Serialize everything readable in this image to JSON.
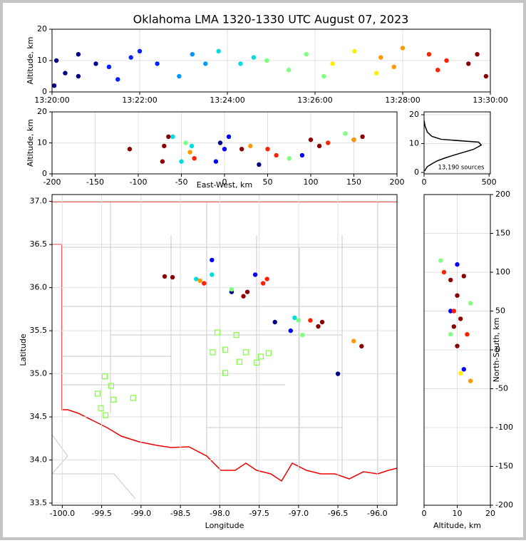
{
  "chart_data": [
    {
      "type": "scatter",
      "title": "Oklahoma LMA 1320-1330 UTC August 07, 2023",
      "ylabel": "Altitude, km",
      "xlim": [
        0,
        10
      ],
      "ylim": [
        0,
        20
      ],
      "xticks": [
        {
          "value": 0,
          "label": "13:20:00"
        },
        {
          "value": 2,
          "label": "13:22:00"
        },
        {
          "value": 4,
          "label": "13:24:00"
        },
        {
          "value": 6,
          "label": "13:26:00"
        },
        {
          "value": 8,
          "label": "13:28:00"
        },
        {
          "value": 10,
          "label": "13:30:00"
        }
      ],
      "yticks": [
        0,
        10,
        20
      ],
      "grid": true,
      "series": [
        {
          "color": "#00008b",
          "x": [
            0.05,
            0.1,
            0.3,
            0.6,
            0.6,
            1.0
          ],
          "y": [
            2,
            10,
            6,
            12,
            5,
            9
          ]
        },
        {
          "color": "#0022ff",
          "x": [
            1.3,
            1.5,
            1.8,
            2.0,
            2.4
          ],
          "y": [
            8,
            4,
            11,
            13,
            9
          ]
        },
        {
          "color": "#0099ff",
          "x": [
            2.9,
            3.2,
            3.5
          ],
          "y": [
            5,
            12,
            9
          ]
        },
        {
          "color": "#00dddd",
          "x": [
            3.8,
            4.3,
            4.6
          ],
          "y": [
            13,
            9,
            11
          ]
        },
        {
          "color": "#80ff80",
          "x": [
            4.9,
            5.4,
            5.8,
            6.2
          ],
          "y": [
            10,
            7,
            12,
            5
          ]
        },
        {
          "color": "#ffee00",
          "x": [
            6.4,
            6.9,
            7.4
          ],
          "y": [
            9,
            13,
            6
          ]
        },
        {
          "color": "#ff9900",
          "x": [
            7.5,
            7.8,
            8.0
          ],
          "y": [
            11,
            8,
            14
          ]
        },
        {
          "color": "#ff2200",
          "x": [
            8.6,
            8.8,
            9.0
          ],
          "y": [
            12,
            7,
            10
          ]
        },
        {
          "color": "#8b0000",
          "x": [
            9.5,
            9.7,
            9.9
          ],
          "y": [
            9,
            12,
            5
          ]
        }
      ]
    },
    {
      "type": "scatter",
      "xlabel": "East-West, km",
      "ylabel": "Altitude, km",
      "xlim": [
        -200,
        200
      ],
      "ylim": [
        0,
        20
      ],
      "xticks": [
        -200,
        -150,
        -100,
        -50,
        0,
        50,
        100,
        150,
        200
      ],
      "yticks": [
        0,
        10,
        20
      ],
      "grid": true,
      "series": [
        {
          "color": "#00008b",
          "x": [
            -5,
            40,
            150
          ],
          "y": [
            10,
            3,
            11
          ]
        },
        {
          "color": "#0000ff",
          "x": [
            0,
            5,
            -10,
            90
          ],
          "y": [
            8,
            12,
            4,
            6
          ]
        },
        {
          "color": "#00dddd",
          "x": [
            -38,
            -50,
            -60
          ],
          "y": [
            9,
            4,
            12
          ]
        },
        {
          "color": "#80ff80",
          "x": [
            -45,
            75,
            140
          ],
          "y": [
            10,
            5,
            13
          ]
        },
        {
          "color": "#ff9900",
          "x": [
            -40,
            30,
            150
          ],
          "y": [
            7,
            9,
            11
          ]
        },
        {
          "color": "#ff2200",
          "x": [
            -35,
            50,
            60,
            120
          ],
          "y": [
            5,
            8,
            6,
            10
          ]
        },
        {
          "color": "#8b0000",
          "x": [
            -110,
            -70,
            -65,
            -72,
            20,
            100,
            110,
            160
          ],
          "y": [
            8,
            9,
            12,
            4,
            8,
            11,
            9,
            12
          ]
        }
      ]
    },
    {
      "type": "line",
      "xlim": [
        0,
        510
      ],
      "ylim": [
        -0.5,
        21
      ],
      "xticks": [
        0,
        500
      ],
      "yticks": [
        0,
        10,
        20
      ],
      "grid": true,
      "annotation": "13,190 sources",
      "series": [
        {
          "color": "#000000",
          "x": [
            5,
            10,
            25,
            60,
            100,
            160,
            230,
            380,
            440,
            420,
            130,
            60,
            25,
            8,
            0
          ],
          "y": [
            0.5,
            1,
            2,
            3,
            4,
            5,
            6,
            8,
            9.5,
            10.5,
            11.5,
            12.5,
            14,
            16,
            18
          ]
        }
      ]
    },
    {
      "type": "scatter",
      "xlabel": "Longitude",
      "ylabel": "Latitude",
      "xlim": [
        -100.13,
        -95.75
      ],
      "ylim": [
        33.475,
        37.08
      ],
      "xticks": [
        {
          "value": -100,
          "label": "-100.0"
        },
        -99.5,
        {
          "value": -99,
          "label": "-99.0"
        },
        -98.5,
        {
          "value": -98,
          "label": "-98.0"
        },
        -97.5,
        {
          "value": -97,
          "label": "-97.0"
        },
        -96.5,
        {
          "value": -96,
          "label": "-96.0"
        }
      ],
      "yticks": [
        33.5,
        {
          "value": 34,
          "label": "34.0"
        },
        34.5,
        {
          "value": 35,
          "label": "35.0"
        },
        35.5,
        {
          "value": 36,
          "label": "36.0"
        },
        36.5,
        {
          "value": 37,
          "label": "37.0"
        }
      ],
      "grid": true,
      "series": [
        {
          "color": "#00008b",
          "x": [
            -97.85,
            -96.5,
            -97.3
          ],
          "y": [
            35.95,
            35.0,
            35.6
          ]
        },
        {
          "color": "#0000ff",
          "x": [
            -98.1,
            -97.55,
            -97.1
          ],
          "y": [
            36.32,
            36.15,
            35.5
          ]
        },
        {
          "color": "#00dddd",
          "x": [
            -98.3,
            -98.1,
            -97.05
          ],
          "y": [
            36.1,
            36.15,
            35.65
          ]
        },
        {
          "color": "#80ff80",
          "x": [
            -97.85,
            -97.0,
            -96.95
          ],
          "y": [
            35.98,
            35.62,
            35.45
          ]
        },
        {
          "color": "#ff9900",
          "x": [
            -98.25,
            -96.3
          ],
          "y": [
            36.08,
            35.38
          ]
        },
        {
          "color": "#ff2200",
          "x": [
            -98.2,
            -97.45,
            -97.4,
            -96.85
          ],
          "y": [
            36.05,
            36.05,
            36.1,
            35.62
          ]
        },
        {
          "color": "#8b0000",
          "x": [
            -98.7,
            -98.6,
            -97.7,
            -97.65,
            -96.75,
            -96.7,
            -96.2
          ],
          "y": [
            36.13,
            36.12,
            35.9,
            35.95,
            35.55,
            35.6,
            35.32
          ]
        },
        {
          "color": "#80ff40",
          "marker": "square",
          "x": [
            -98.03,
            -97.79,
            -98.09,
            -97.93,
            -97.67,
            -97.38,
            -97.93,
            -97.75,
            -97.53,
            -97.48,
            -99.46,
            -99.38,
            -99.55,
            -99.35,
            -99.1,
            -99.51,
            -99.45
          ],
          "y": [
            35.48,
            35.45,
            35.25,
            35.28,
            35.25,
            35.24,
            35.01,
            35.14,
            35.13,
            35.2,
            34.97,
            34.86,
            34.77,
            34.7,
            34.72,
            34.6,
            34.52
          ]
        }
      ]
    },
    {
      "type": "scatter",
      "xlabel": "Altitude, km",
      "ylabel": "North-South, km",
      "y_axis_side": "right",
      "xlim": [
        0,
        20
      ],
      "ylim": [
        -200,
        200
      ],
      "xticks": [
        0,
        10,
        20
      ],
      "yticks": [
        -200,
        -150,
        -100,
        -50,
        0,
        50,
        100,
        150,
        200
      ],
      "grid": true,
      "series": [
        {
          "color": "#0000ff",
          "x": [
            10,
            12,
            8
          ],
          "y": [
            110,
            -25,
            50
          ]
        },
        {
          "color": "#80ff80",
          "x": [
            5,
            8,
            14
          ],
          "y": [
            115,
            20,
            60
          ]
        },
        {
          "color": "#ffee00",
          "x": [
            11
          ],
          "y": [
            -30
          ]
        },
        {
          "color": "#ff9900",
          "x": [
            14
          ],
          "y": [
            -40
          ]
        },
        {
          "color": "#ff2200",
          "x": [
            6,
            9,
            13
          ],
          "y": [
            100,
            50,
            20
          ]
        },
        {
          "color": "#8b0000",
          "x": [
            8,
            10,
            12,
            9,
            11,
            10
          ],
          "y": [
            90,
            70,
            95,
            30,
            40,
            5
          ]
        }
      ]
    }
  ]
}
